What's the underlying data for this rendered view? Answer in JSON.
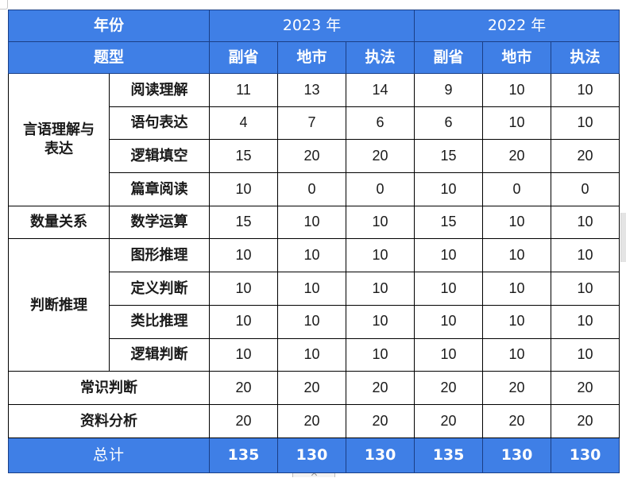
{
  "header": {
    "year_label": "年份",
    "type_label": "题型",
    "years": [
      "2023 年",
      "2022 年"
    ],
    "columns": [
      "副省",
      "地市",
      "执法",
      "副省",
      "地市",
      "执法"
    ]
  },
  "groups": [
    {
      "category": "言语理解与表达",
      "rows": [
        {
          "name": "阅读理解",
          "values": [
            "11",
            "13",
            "14",
            "9",
            "10",
            "10"
          ]
        },
        {
          "name": "语句表达",
          "values": [
            "4",
            "7",
            "6",
            "6",
            "10",
            "10"
          ]
        },
        {
          "name": "逻辑填空",
          "values": [
            "15",
            "20",
            "20",
            "15",
            "20",
            "20"
          ]
        },
        {
          "name": "篇章阅读",
          "values": [
            "10",
            "0",
            "0",
            "10",
            "0",
            "0"
          ]
        }
      ]
    },
    {
      "category": "数量关系",
      "rows": [
        {
          "name": "数学运算",
          "values": [
            "15",
            "10",
            "10",
            "15",
            "10",
            "10"
          ]
        }
      ]
    },
    {
      "category": "判断推理",
      "rows": [
        {
          "name": "图形推理",
          "values": [
            "10",
            "10",
            "10",
            "10",
            "10",
            "10"
          ]
        },
        {
          "name": "定义判断",
          "values": [
            "10",
            "10",
            "10",
            "10",
            "10",
            "10"
          ]
        },
        {
          "name": "类比推理",
          "values": [
            "10",
            "10",
            "10",
            "10",
            "10",
            "10"
          ]
        },
        {
          "name": "逻辑判断",
          "values": [
            "10",
            "10",
            "10",
            "10",
            "10",
            "10"
          ]
        }
      ]
    }
  ],
  "single_rows": [
    {
      "name": "常识判断",
      "values": [
        "20",
        "20",
        "20",
        "20",
        "20",
        "20"
      ]
    },
    {
      "name": "资料分析",
      "values": [
        "20",
        "20",
        "20",
        "20",
        "20",
        "20"
      ]
    }
  ],
  "total": {
    "label": "总计",
    "values": [
      "135",
      "130",
      "130",
      "135",
      "130",
      "130"
    ]
  },
  "colors": {
    "header_bg": "#3f7fe6",
    "header_text": "#ffffff",
    "grid": "#000000"
  }
}
